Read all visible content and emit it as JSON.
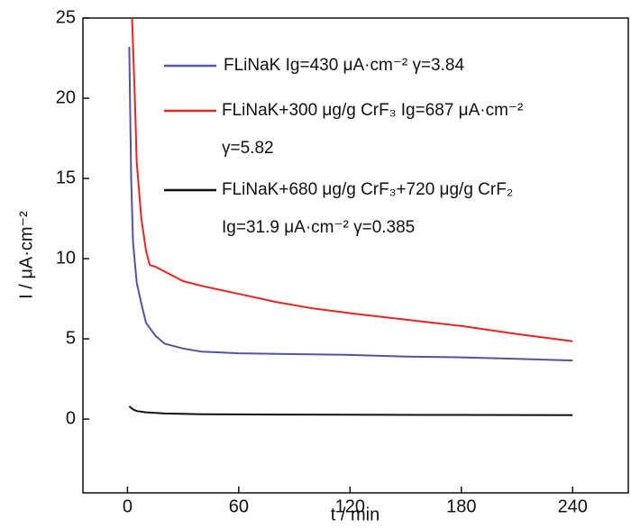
{
  "chart_data": {
    "type": "line",
    "x_label": "t / min",
    "y_label": "I / μA·cm⁻²",
    "xlim": [
      -24,
      270
    ],
    "xticks": [
      0,
      60,
      120,
      180,
      240
    ],
    "ylim": [
      -4.6,
      25
    ],
    "yticks": [
      0,
      5,
      10,
      15,
      20,
      25
    ],
    "series": [
      {
        "name": "FLiNaK Ig=430 μA·cm⁻² γ=3.84",
        "color": "#5552a0",
        "x": [
          1,
          2,
          3,
          5,
          7.5,
          10,
          15,
          20,
          30,
          40,
          60,
          90,
          120,
          150,
          180,
          210,
          240
        ],
        "values": [
          23.2,
          15,
          11,
          8.5,
          7.2,
          6,
          5.2,
          4.7,
          4.4,
          4.2,
          4.1,
          4.05,
          4.0,
          3.9,
          3.85,
          3.75,
          3.65
        ]
      },
      {
        "name": "FLiNaK+300 μg/g CrF₃ Ig=687 μA·cm⁻²\nγ=5.82",
        "color": "#e8251f",
        "x": [
          2.5,
          4,
          5,
          7.5,
          10,
          12,
          15,
          20,
          30,
          40,
          60,
          80,
          100,
          120,
          150,
          180,
          210,
          240
        ],
        "values": [
          25,
          20,
          16,
          12.5,
          10.5,
          9.6,
          9.5,
          9.2,
          8.6,
          8.3,
          7.8,
          7.3,
          6.9,
          6.6,
          6.2,
          5.8,
          5.3,
          4.85
        ]
      },
      {
        "name": "FLiNaK+680 μg/g CrF₃+720 μg/g CrF₂\nIg=31.9 μA·cm⁻²  γ=0.385",
        "color": "#111111",
        "x": [
          1,
          3,
          5,
          10,
          20,
          40,
          80,
          160,
          240
        ],
        "values": [
          0.8,
          0.6,
          0.5,
          0.42,
          0.35,
          0.3,
          0.28,
          0.26,
          0.25
        ]
      }
    ]
  }
}
